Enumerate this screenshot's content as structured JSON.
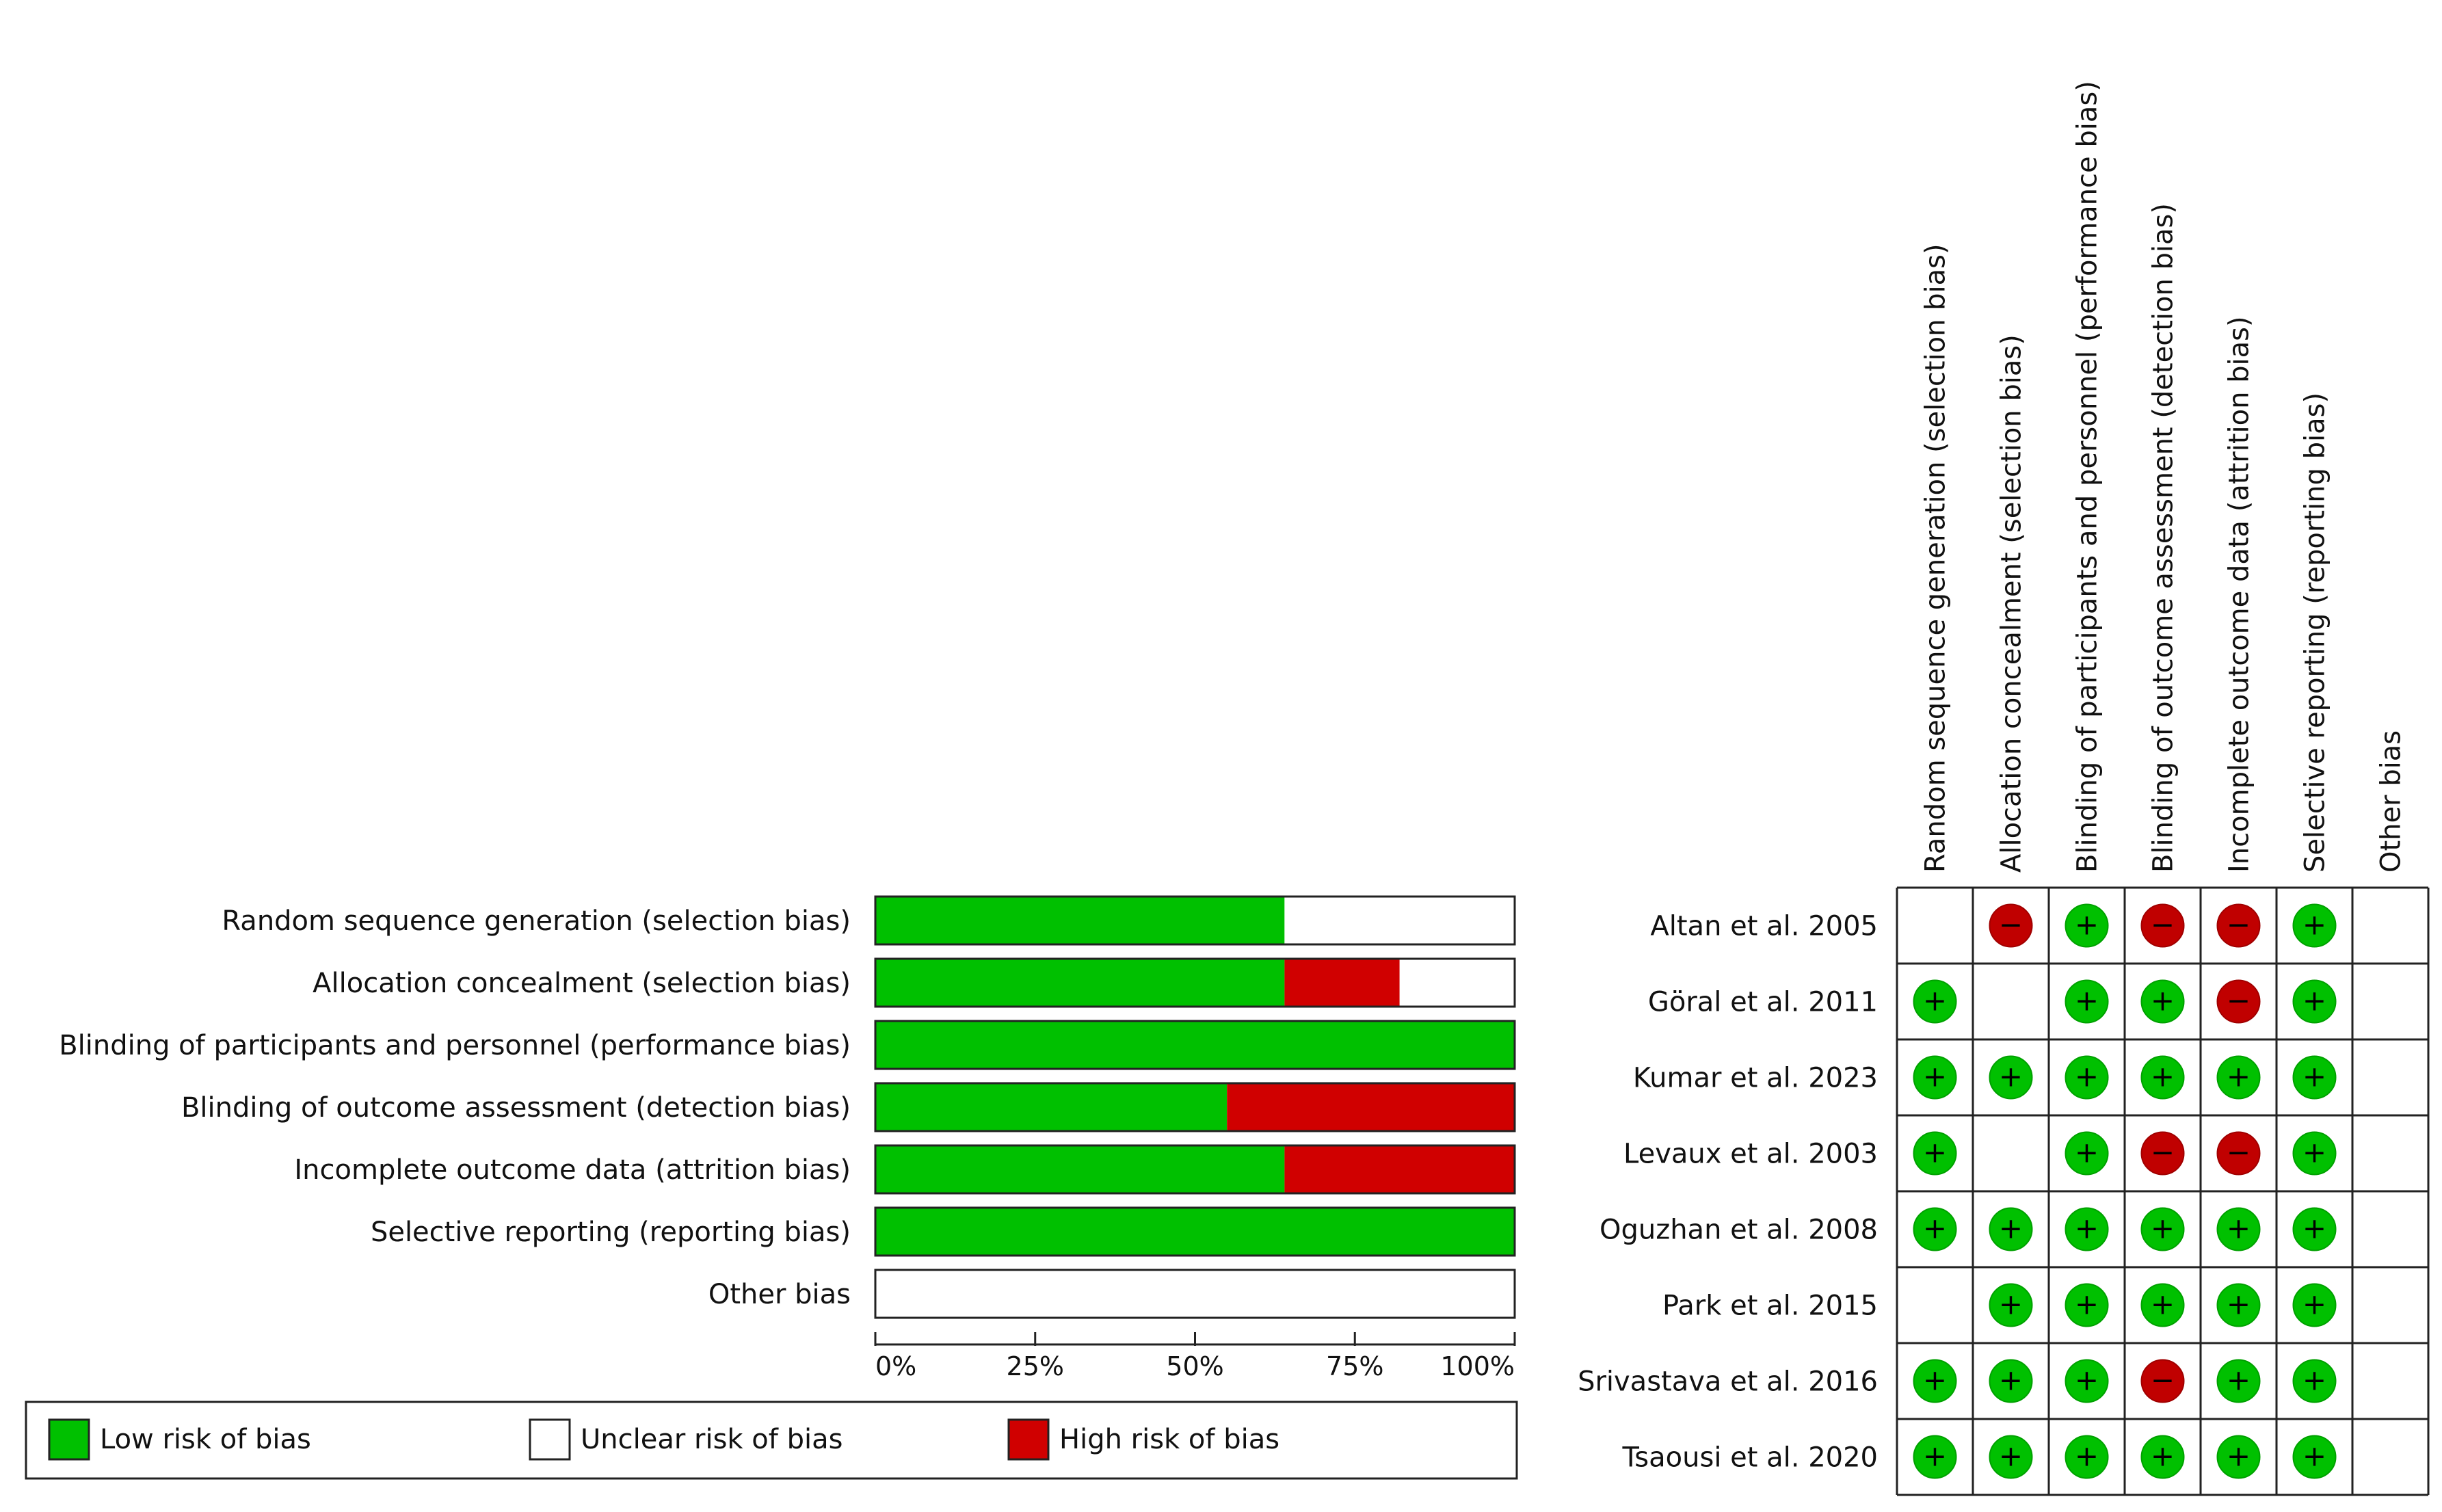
{
  "chart_data": [
    {
      "type": "bar",
      "stacked": true,
      "orientation": "horizontal",
      "title": "",
      "categories": [
        "Random sequence generation (selection bias)",
        "Allocation concealment (selection bias)",
        "Blinding of participants and personnel (performance bias)",
        "Blinding of outcome assessment (detection bias)",
        "Incomplete outcome data (attrition bias)",
        "Selective reporting (reporting bias)",
        "Other bias"
      ],
      "series": [
        {
          "name": "Low risk of bias",
          "color": "#00c000",
          "values": [
            64,
            64,
            100,
            55,
            64,
            100,
            0
          ]
        },
        {
          "name": "High risk of bias",
          "color": "#d00000",
          "values": [
            0,
            18,
            0,
            45,
            36,
            0,
            0
          ]
        },
        {
          "name": "Unclear risk of bias",
          "color": "#ffffff",
          "values": [
            36,
            18,
            0,
            0,
            0,
            0,
            100
          ]
        }
      ],
      "xlim": [
        0,
        100
      ],
      "xticks": [
        "0%",
        "25%",
        "50%",
        "75%",
        "100%"
      ],
      "legend_position": "bottom",
      "legend": [
        {
          "label": "Low risk of bias",
          "color": "#00c000"
        },
        {
          "label": "Unclear risk of bias",
          "color": "#ffffff"
        },
        {
          "label": "High risk of bias",
          "color": "#d00000"
        }
      ]
    },
    {
      "type": "table",
      "columns": [
        "Random sequence generation (selection bias)",
        "Allocation concealment (selection bias)",
        "Blinding of participants and personnel (performance bias)",
        "Blinding of outcome assessment (detection bias)",
        "Incomplete outcome data (attrition bias)",
        "Selective reporting (reporting bias)",
        "Other bias"
      ],
      "rows": [
        {
          "study": "Altan et al. 2005",
          "ratings": [
            "?",
            "-",
            "+",
            "-",
            "-",
            "+",
            "?"
          ]
        },
        {
          "study": "Göral et al. 2011",
          "ratings": [
            "+",
            "?",
            "+",
            "+",
            "-",
            "+",
            "?"
          ]
        },
        {
          "study": "Kumar et al. 2023",
          "ratings": [
            "+",
            "+",
            "+",
            "+",
            "+",
            "+",
            "?"
          ]
        },
        {
          "study": "Levaux et al. 2003",
          "ratings": [
            "+",
            "?",
            "+",
            "-",
            "-",
            "+",
            "?"
          ]
        },
        {
          "study": "Oguzhan et al. 2008",
          "ratings": [
            "+",
            "+",
            "+",
            "+",
            "+",
            "+",
            "?"
          ]
        },
        {
          "study": "Park et al. 2015",
          "ratings": [
            "?",
            "+",
            "+",
            "+",
            "+",
            "+",
            "?"
          ]
        },
        {
          "study": "Srivastava et al. 2016",
          "ratings": [
            "+",
            "+",
            "+",
            "-",
            "+",
            "+",
            "?"
          ]
        },
        {
          "study": "Tsaousi et al. 2020",
          "ratings": [
            "+",
            "+",
            "+",
            "+",
            "+",
            "+",
            "?"
          ]
        }
      ],
      "symbols": {
        "low": "+",
        "high": "−"
      },
      "colors": {
        "low": "#00c000",
        "high": "#c00000"
      }
    }
  ]
}
